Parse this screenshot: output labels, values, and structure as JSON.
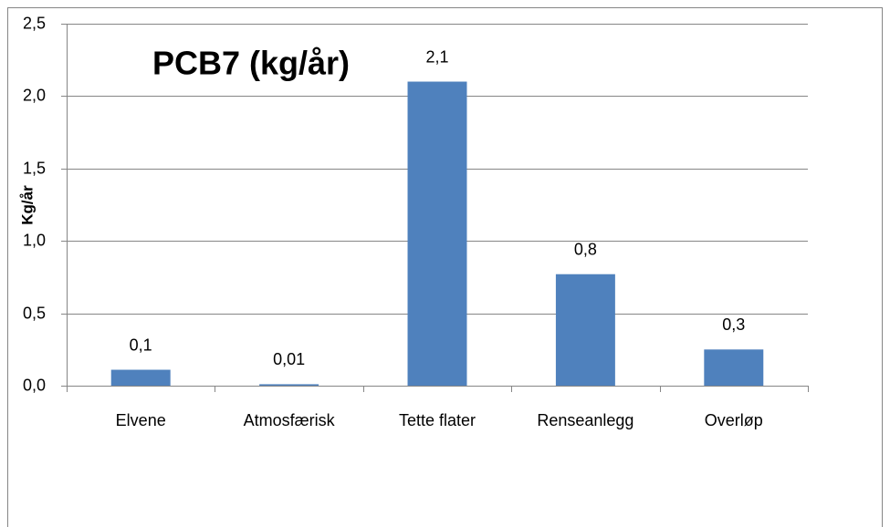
{
  "chart_data": {
    "type": "bar",
    "title": "PCB7 (kg/år)",
    "y_label": "Kg/år",
    "categories": [
      "Elvene",
      "Atmosfærisk",
      "Tette flater",
      "Renseanlegg",
      "Overløp"
    ],
    "values": [
      0.11,
      0.01,
      2.1,
      0.77,
      0.25
    ],
    "value_labels": [
      "0,1",
      "0,01",
      "2,1",
      "0,8",
      "0,3"
    ],
    "color": "#4f81bd",
    "ylim": [
      0,
      2.5
    ],
    "yticks": [
      {
        "value": 0,
        "label": "0,0"
      },
      {
        "value": 0.5,
        "label": "0,5"
      },
      {
        "value": 1,
        "label": "1,0"
      },
      {
        "value": 1.5,
        "label": "1,5"
      },
      {
        "value": 2,
        "label": "2,0"
      },
      {
        "value": 2.5,
        "label": "2,5"
      }
    ],
    "grid": true
  }
}
